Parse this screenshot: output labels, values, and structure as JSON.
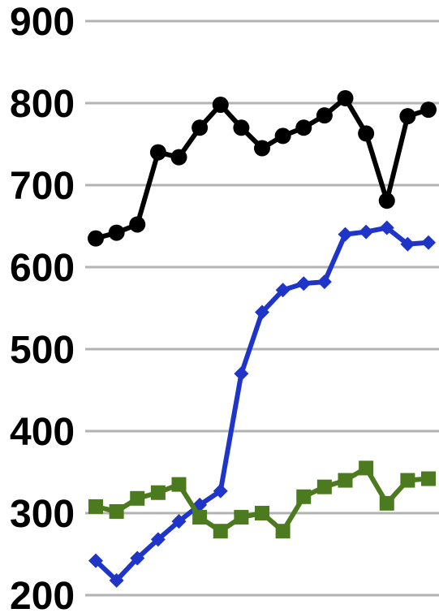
{
  "chart_data": {
    "type": "line",
    "title": "",
    "xlabel": "",
    "ylabel": "",
    "ylim": [
      200,
      900
    ],
    "yticks": [
      "900",
      "800",
      "700",
      "600",
      "500",
      "400",
      "300",
      "200"
    ],
    "x": [
      1,
      2,
      3,
      4,
      5,
      6,
      7,
      8,
      9,
      10,
      11,
      12,
      13,
      14,
      15,
      16,
      17
    ],
    "grid": true,
    "legend": "none",
    "series": [
      {
        "color": "#000000",
        "marker": "circle",
        "values": [
          635,
          642,
          652,
          740,
          734,
          770,
          798,
          770,
          745,
          760,
          770,
          785,
          806,
          763,
          681,
          784,
          792
        ]
      },
      {
        "color": "#1f35c8",
        "marker": "diamond",
        "values": [
          242,
          218,
          245,
          268,
          290,
          310,
          327,
          470,
          545,
          572,
          580,
          582,
          640,
          643,
          648,
          628,
          630
        ]
      },
      {
        "color": "#4c7a1f",
        "marker": "square",
        "values": [
          308,
          302,
          318,
          325,
          335,
          295,
          278,
          295,
          300,
          278,
          320,
          332,
          340,
          355,
          312,
          340,
          342
        ]
      }
    ]
  }
}
